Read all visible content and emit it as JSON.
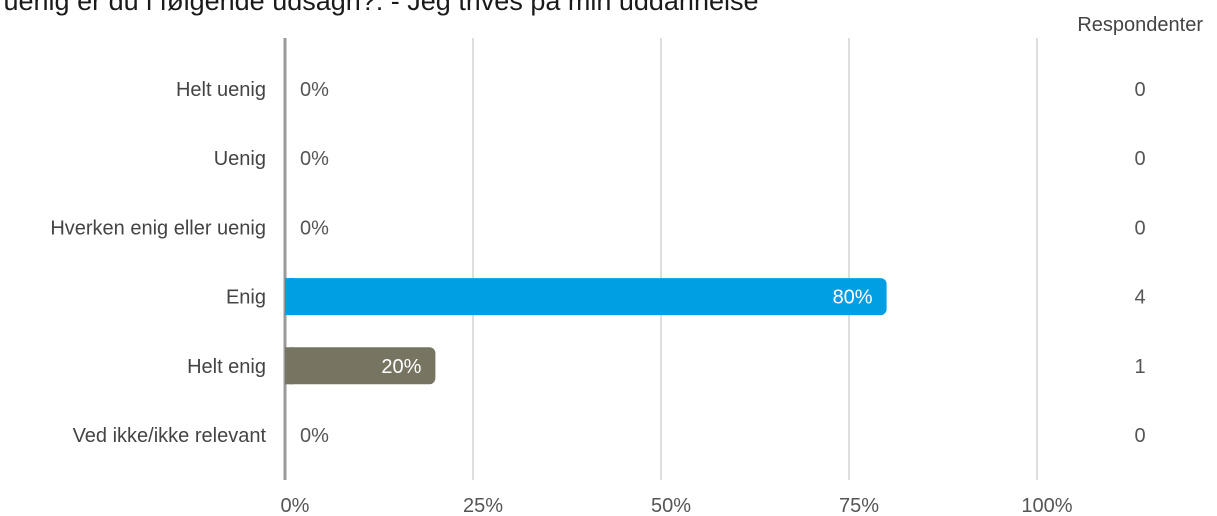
{
  "title": "er uenig er du i følgende udsagn?: - Jeg trives på min uddannelse",
  "respondents_header": "Respondenter",
  "chart_data": {
    "type": "bar",
    "orientation": "horizontal",
    "categories": [
      "Helt uenig",
      "Uenig",
      "Hverken enig eller uenig",
      "Enig",
      "Helt enig",
      "Ved ikke/ikke relevant"
    ],
    "values": [
      0,
      0,
      0,
      80,
      20,
      0
    ],
    "value_labels": [
      "0%",
      "0%",
      "0%",
      "80%",
      "20%",
      "0%"
    ],
    "respondents": [
      "0",
      "0",
      "0",
      "4",
      "1",
      "0"
    ],
    "bar_colors": [
      "#009fe3",
      "#009fe3",
      "#009fe3",
      "#009fe3",
      "#777461",
      "#009fe3"
    ],
    "xlim": [
      0,
      100
    ],
    "xticks": [
      "0%",
      "25%",
      "50%",
      "75%",
      "100%"
    ],
    "grid": true
  }
}
